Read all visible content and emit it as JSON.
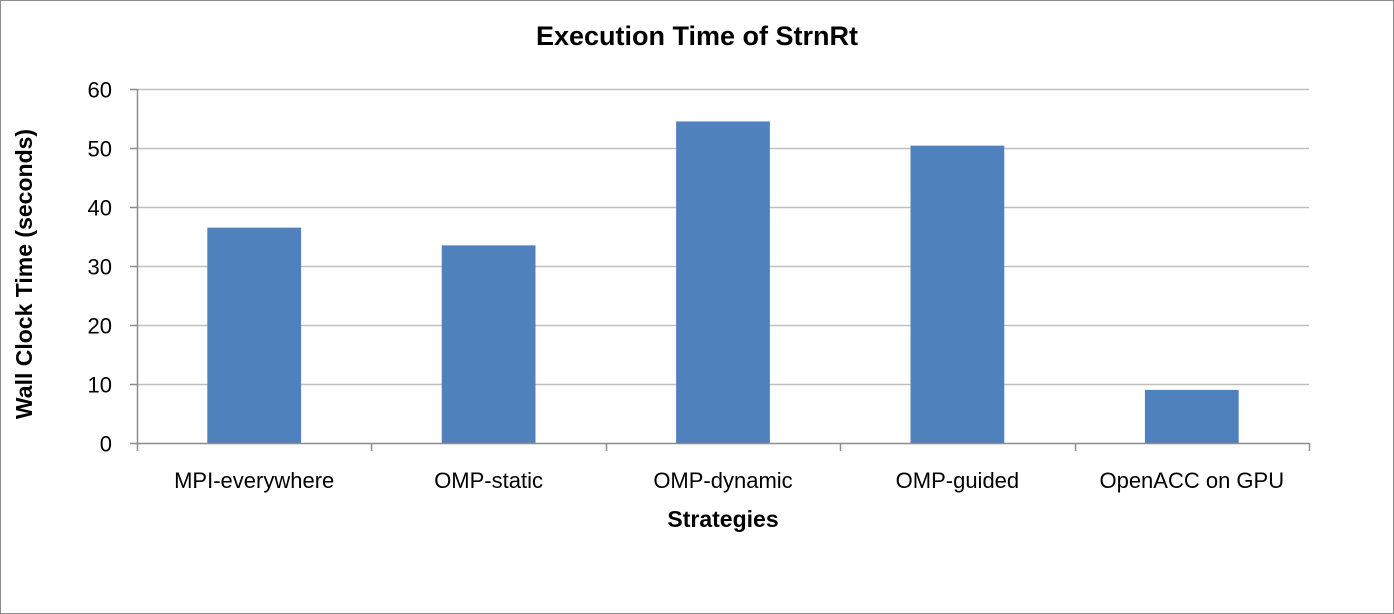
{
  "chart_data": {
    "type": "bar",
    "title": "Execution Time of StrnRt",
    "xlabel": "Strategies",
    "ylabel": "Wall Clock Time (seconds)",
    "categories": [
      "MPI-everywhere",
      "OMP-static",
      "OMP-dynamic",
      "OMP-guided",
      "OpenACC on GPU"
    ],
    "values": [
      36.5,
      33.5,
      54.5,
      50.4,
      9.0
    ],
    "ylim": [
      0,
      60
    ],
    "yticks": [
      0,
      10,
      20,
      30,
      40,
      50,
      60
    ],
    "grid": true,
    "legend": "none",
    "bar_color": "#4f81bd",
    "grid_color": "#bfbfbf"
  }
}
